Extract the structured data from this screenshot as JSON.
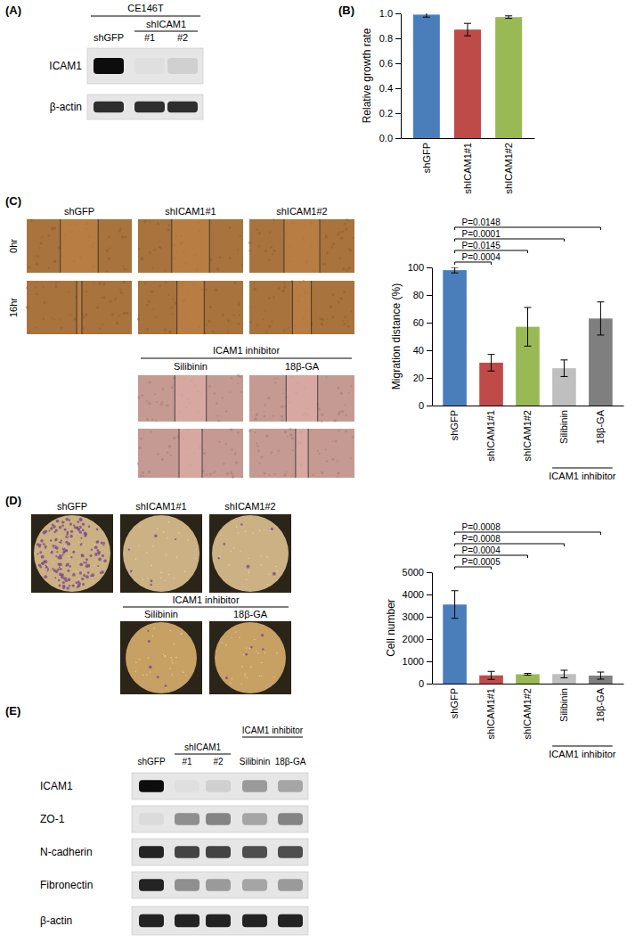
{
  "chart_data": [
    {
      "type": "bar",
      "categories": [
        "shGFP",
        "shICAM1#1",
        "shICAM1#2"
      ],
      "values": [
        0.99,
        0.87,
        0.97
      ],
      "errors": [
        0.02,
        0.05,
        0.01
      ],
      "colors": [
        "#4a7ebb",
        "#be4b48",
        "#98b954"
      ],
      "ylabel": "Relative growth rate",
      "ylim": [
        0,
        1.0
      ],
      "yticks": [
        {
          "value": 0,
          "label": "0.0"
        },
        {
          "value": 0.2,
          "label": "0.2"
        },
        {
          "value": 0.4,
          "label": "0.4"
        },
        {
          "value": 0.6,
          "label": "0.6"
        },
        {
          "value": 0.8,
          "label": "0.8"
        },
        {
          "value": 1.0,
          "label": "1.0"
        }
      ]
    },
    {
      "type": "bar",
      "categories": [
        "shGFP",
        "shICAM1#1",
        "shICAM1#2",
        "Silibinin",
        "18β-GA"
      ],
      "values": [
        98,
        31,
        57,
        27,
        63
      ],
      "errors": [
        2,
        6,
        14,
        6,
        12
      ],
      "colors": [
        "#4a7ebb",
        "#be4b48",
        "#98b954",
        "#bfbfbf",
        "#7f7f7f"
      ],
      "ylabel": "Migration distance (%)",
      "ylim": [
        0,
        100
      ],
      "yticks": [
        0,
        20,
        40,
        60,
        80,
        100
      ],
      "annotations": [
        {
          "text": "P=0.0148",
          "between": [
            "shGFP",
            "18β-GA"
          ]
        },
        {
          "text": "P=0.0001",
          "between": [
            "shGFP",
            "Silibinin"
          ]
        },
        {
          "text": "P=0.0145",
          "between": [
            "shGFP",
            "shICAM1#2"
          ]
        },
        {
          "text": "P=0.0004",
          "between": [
            "shGFP",
            "shICAM1#1"
          ]
        }
      ],
      "group_label": {
        "text": "ICAM1 inhibitor",
        "categories": [
          "Silibinin",
          "18β-GA"
        ]
      }
    },
    {
      "type": "bar",
      "categories": [
        "shGFP",
        "shICAM1#1",
        "shICAM1#2",
        "Silibinin",
        "18β-GA"
      ],
      "values": [
        3550,
        370,
        420,
        430,
        360
      ],
      "errors": [
        620,
        180,
        40,
        170,
        160
      ],
      "colors": [
        "#4a7ebb",
        "#be4b48",
        "#98b954",
        "#bfbfbf",
        "#7f7f7f"
      ],
      "ylabel": "Cell number",
      "ylim": [
        0,
        5000
      ],
      "yticks": [
        0,
        1000,
        2000,
        3000,
        4000,
        5000
      ],
      "annotations": [
        {
          "text": "P=0.0008",
          "between": [
            "shGFP",
            "18β-GA"
          ]
        },
        {
          "text": "P=0.0008",
          "between": [
            "shGFP",
            "Silibinin"
          ]
        },
        {
          "text": "P=0.0004",
          "between": [
            "shGFP",
            "shICAM1#2"
          ]
        },
        {
          "text": "P=0.0005",
          "between": [
            "shGFP",
            "shICAM1#1"
          ]
        }
      ],
      "group_label": {
        "text": "ICAM1 inhibitor",
        "categories": [
          "Silibinin",
          "18β-GA"
        ]
      }
    }
  ],
  "figure": {
    "panel_a": {
      "label": "(A)",
      "cell_line": "CE146T",
      "lane_labels": [
        "shGFP",
        "#1",
        "#2"
      ],
      "groups": [
        {
          "text": "shICAM1",
          "lanes": [
            "#1",
            "#2"
          ]
        }
      ],
      "rows": [
        {
          "name": "ICAM1",
          "intensity": [
            1.0,
            0.03,
            0.1
          ]
        },
        {
          "name": "β-actin",
          "intensity": [
            0.85,
            0.85,
            0.85
          ]
        }
      ]
    },
    "panel_b": {
      "label": "(B)"
    },
    "panel_c": {
      "label": "(C)",
      "columns": [
        "shGFP",
        "shICAM1#1",
        "shICAM1#2"
      ],
      "rows": [
        "0hr",
        "16hr"
      ],
      "inhibitor_label": "ICAM1 inhibitor",
      "inhibitors": [
        "Silibinin",
        "18β-GA"
      ]
    },
    "panel_d": {
      "label": "(D)",
      "columns": [
        "shGFP",
        "shICAM1#1",
        "shICAM1#2"
      ],
      "inhibitor_label": "ICAM1 inhibitor",
      "inhibitors": [
        "Silibinin",
        "18β-GA"
      ]
    },
    "panel_e": {
      "label": "(E)",
      "lane_labels": [
        "shGFP",
        "#1",
        "#2",
        "Silibinin",
        "18β-GA"
      ],
      "groups": [
        {
          "text": "shICAM1",
          "lanes": [
            "#1",
            "#2"
          ]
        },
        {
          "text": "ICAM1 inhibitor",
          "lanes": [
            "Silibinin",
            "18β-GA"
          ]
        }
      ],
      "rows": [
        {
          "name": "ICAM1",
          "intensity": [
            1.0,
            0.03,
            0.1,
            0.35,
            0.3
          ]
        },
        {
          "name": "ZO-1",
          "intensity": [
            0.05,
            0.4,
            0.45,
            0.3,
            0.45
          ]
        },
        {
          "name": "N-cadherin",
          "intensity": [
            0.9,
            0.75,
            0.75,
            0.7,
            0.7
          ]
        },
        {
          "name": "Fibronectin",
          "intensity": [
            0.9,
            0.4,
            0.35,
            0.3,
            0.35
          ]
        },
        {
          "name": "β-actin",
          "intensity": [
            0.9,
            0.9,
            0.9,
            0.9,
            0.9
          ]
        }
      ]
    }
  }
}
